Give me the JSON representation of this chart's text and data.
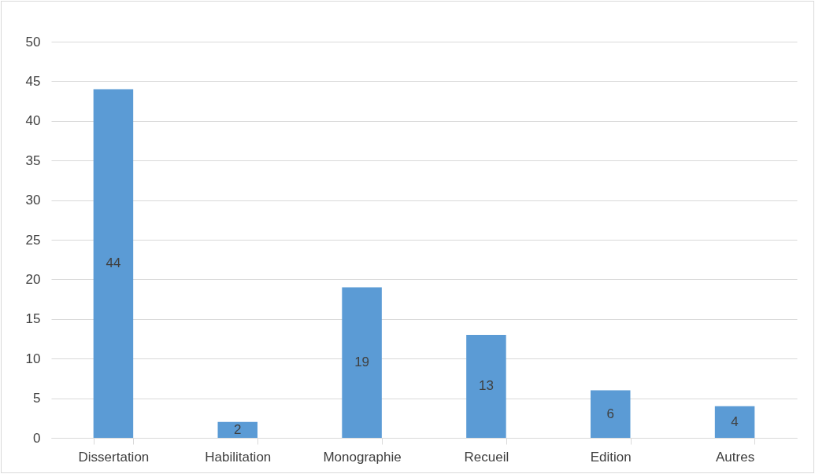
{
  "chart_data": {
    "type": "bar",
    "categories": [
      "Dissertation",
      "Habilitation",
      "Monographie",
      "Recueil",
      "Edition",
      "Autres"
    ],
    "values": [
      44,
      2,
      19,
      13,
      6,
      4
    ],
    "color": "#5b9bd5",
    "ylim": [
      0,
      50
    ],
    "yticks": [
      0,
      5,
      10,
      15,
      20,
      25,
      30,
      35,
      40,
      45,
      50
    ],
    "grid": "y",
    "data_labels": true
  }
}
